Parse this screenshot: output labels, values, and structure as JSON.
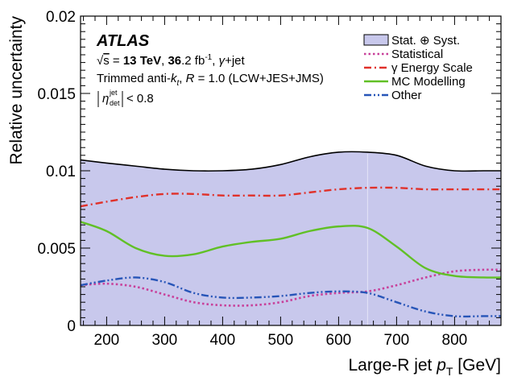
{
  "chart_data": {
    "type": "area",
    "xlabel": "Large-R jet p_T [GeV]",
    "ylabel": "Relative uncertainty",
    "xlim": [
      155,
      880
    ],
    "ylim": [
      0,
      0.02
    ],
    "x_ticks": [
      200,
      300,
      400,
      500,
      600,
      700,
      800
    ],
    "x_tick_labels": [
      "200",
      "300",
      "400",
      "500",
      "600",
      "700",
      "800"
    ],
    "y_ticks": [
      0,
      0.005,
      0.01,
      0.015,
      0.02
    ],
    "y_tick_labels": [
      "0",
      "0.005",
      "0.01",
      "0.015",
      "0.02"
    ],
    "grid": false,
    "legend_position": "top-right",
    "annotations": {
      "experiment": "ATLAS",
      "energy_line": "√s = 13 TeV, 36.2 fb⁻¹, γ+jet",
      "algorithm_line": "Trimmed anti-kₜ R = 1.0 (LCW+JES+JMS)",
      "eta_cut": "|η_det^jet| < 0.8"
    },
    "series": [
      {
        "name": "Stat. ⊕ Syst.",
        "style": "filled",
        "color": "#c8c8ec",
        "edge_color": "#000000",
        "x": [
          155,
          200,
          250,
          300,
          350,
          400,
          450,
          500,
          550,
          600,
          650,
          700,
          750,
          800,
          850,
          880
        ],
        "values": [
          0.0107,
          0.0105,
          0.0103,
          0.0101,
          0.01,
          0.01,
          0.0101,
          0.0104,
          0.0109,
          0.0112,
          0.0112,
          0.011,
          0.0103,
          0.01,
          0.01,
          0.01
        ]
      },
      {
        "name": "Statistical",
        "style": "dotted",
        "color": "#c8409a",
        "x": [
          155,
          200,
          250,
          300,
          350,
          400,
          450,
          500,
          550,
          600,
          650,
          700,
          750,
          800,
          850,
          880
        ],
        "values": [
          0.0026,
          0.0027,
          0.0025,
          0.002,
          0.0015,
          0.0013,
          0.0013,
          0.0015,
          0.0019,
          0.0021,
          0.0022,
          0.0026,
          0.0031,
          0.0035,
          0.0036,
          0.0036
        ]
      },
      {
        "name": "γ Energy Scale",
        "style": "dashdot",
        "color": "#e0312a",
        "x": [
          155,
          200,
          250,
          300,
          350,
          400,
          450,
          500,
          550,
          600,
          650,
          700,
          750,
          800,
          850,
          880
        ],
        "values": [
          0.0077,
          0.008,
          0.0083,
          0.0085,
          0.0085,
          0.0084,
          0.0084,
          0.0084,
          0.0086,
          0.0088,
          0.0089,
          0.0089,
          0.0088,
          0.0088,
          0.0088,
          0.0088
        ]
      },
      {
        "name": "MC Modelling",
        "style": "solid",
        "color": "#61c026",
        "x": [
          155,
          200,
          250,
          300,
          350,
          400,
          450,
          500,
          550,
          600,
          650,
          700,
          750,
          800,
          850,
          880
        ],
        "values": [
          0.0067,
          0.0061,
          0.005,
          0.0045,
          0.0046,
          0.0051,
          0.0054,
          0.0056,
          0.0061,
          0.0064,
          0.0063,
          0.0051,
          0.0037,
          0.0032,
          0.0031,
          0.0031
        ]
      },
      {
        "name": "Other",
        "style": "dashdotdot",
        "color": "#2755b8",
        "x": [
          155,
          200,
          250,
          300,
          350,
          400,
          450,
          500,
          550,
          600,
          650,
          700,
          750,
          800,
          850,
          880
        ],
        "values": [
          0.0026,
          0.0029,
          0.0031,
          0.0028,
          0.0021,
          0.0018,
          0.0018,
          0.0019,
          0.0021,
          0.0022,
          0.0021,
          0.0015,
          0.0009,
          0.0006,
          0.0006,
          0.0006
        ]
      }
    ]
  }
}
